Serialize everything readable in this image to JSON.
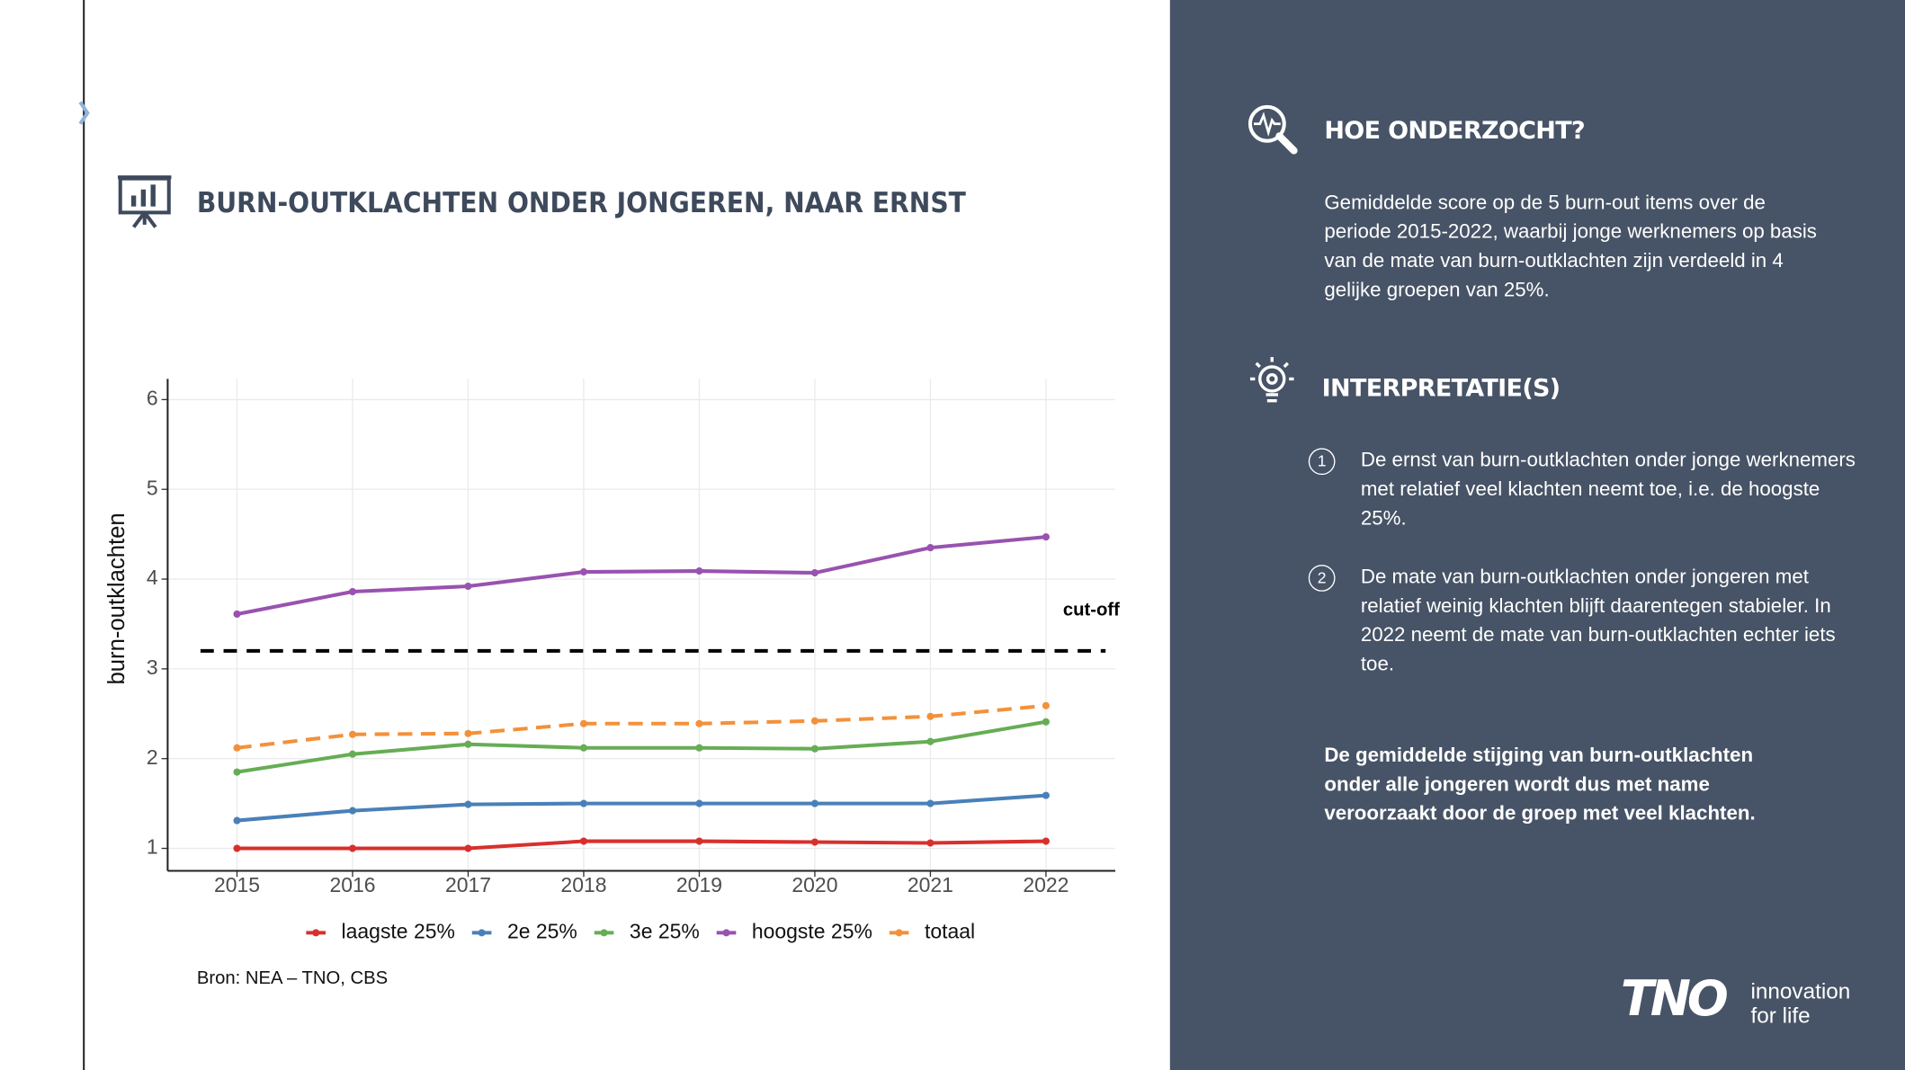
{
  "chart_data": {
    "type": "line",
    "title": "BURN-OUTKLACHTEN ONDER JONGEREN, NAAR ERNST",
    "y_label": "burn-outklachten",
    "source": "Bron: NEA – TNO, CBS",
    "x": [
      2015,
      2016,
      2017,
      2018,
      2019,
      2020,
      2021,
      2022
    ],
    "xlim": [
      2014.4,
      2022.6
    ],
    "xticks": [
      2015,
      2016,
      2017,
      2018,
      2019,
      2020,
      2021,
      2022
    ],
    "ylim": [
      0.75,
      6.23
    ],
    "yticks": [
      1,
      2,
      3,
      4,
      5,
      6
    ],
    "grid": true,
    "reference_line": {
      "value": 3.2,
      "label": "cut-off"
    },
    "series": [
      {
        "name": "laagste 25%",
        "color": "#d7302c",
        "values": [
          1.0,
          1.0,
          1.0,
          1.08,
          1.08,
          1.07,
          1.06,
          1.08
        ]
      },
      {
        "name": "2e 25%",
        "color": "#4a80b8",
        "values": [
          1.31,
          1.42,
          1.49,
          1.5,
          1.5,
          1.5,
          1.5,
          1.59
        ]
      },
      {
        "name": "3e 25%",
        "color": "#66ad55",
        "values": [
          1.85,
          2.05,
          2.16,
          2.12,
          2.12,
          2.11,
          2.19,
          2.41
        ]
      },
      {
        "name": "hoogste 25%",
        "color": "#9952b0",
        "values": [
          3.61,
          3.86,
          3.92,
          4.08,
          4.09,
          4.07,
          4.35,
          4.47
        ]
      },
      {
        "name": "totaal",
        "color": "#f3913a",
        "dashed": true,
        "values": [
          2.12,
          2.27,
          2.28,
          2.39,
          2.39,
          2.42,
          2.47,
          2.59
        ]
      }
    ]
  },
  "panel": {
    "method_title": "HOE ONDERZOCHT?",
    "method_text": "Gemiddelde score op de 5 burn-out items over de periode 2015-2022, waarbij jonge werknemers op basis van de mate van burn-outklachten zijn verdeeld in 4 gelijke groepen van 25%.",
    "interpretation_title": "INTERPRETATIE(S)",
    "items": [
      {
        "number": "1",
        "text": "De ernst van burn-outklachten onder jonge werknemers met relatief veel klachten neemt toe, i.e. de hoogste 25%."
      },
      {
        "number": "2",
        "text": "De mate van burn-outklachten onder jongeren met relatief weinig klachten blijft daarentegen stabieler. In 2022 neemt de mate van burn-outklachten echter iets toe."
      }
    ],
    "conclusion": "De gemiddelde stijging van burn-outklachten onder alle jongeren wordt dus met name veroorzaakt door de groep met veel klachten.",
    "logo": "TNO",
    "tagline": [
      "innovation",
      "for life"
    ]
  }
}
